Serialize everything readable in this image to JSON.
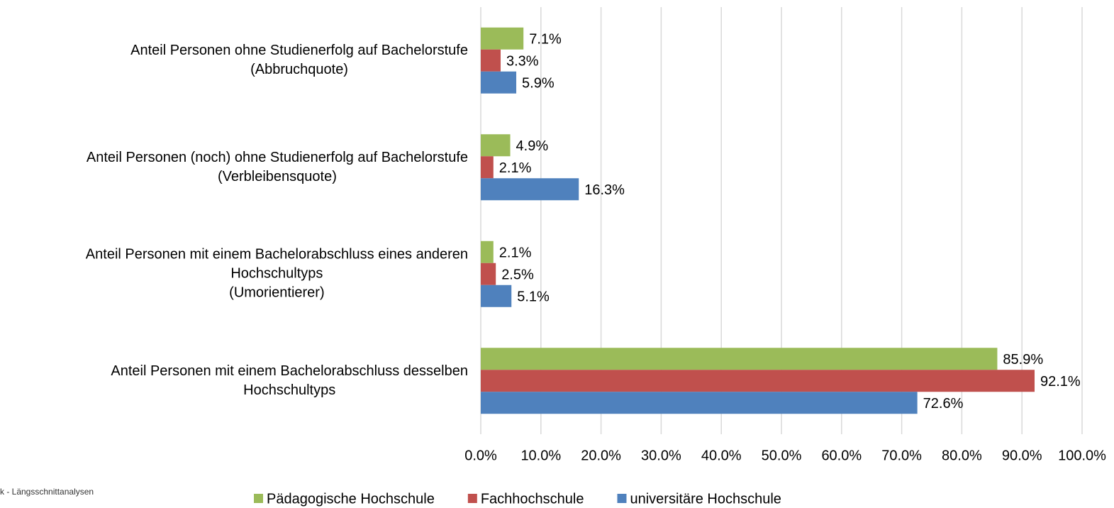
{
  "chart_data": {
    "type": "hbar",
    "categories": [
      [
        "Anteil Personen ohne Studienerfolg auf Bachelorstufe",
        "(Abbruchquote)"
      ],
      [
        "Anteil Personen (noch) ohne Studienerfolg auf Bachelorstufe",
        "(Verbleibensquote)"
      ],
      [
        "Anteil Personen mit einem Bachelorabschluss eines anderen",
        "Hochschultyps",
        "(Umorientierer)"
      ],
      [
        "Anteil Personen mit einem Bachelorabschluss desselben",
        "Hochschultyps"
      ]
    ],
    "series": [
      {
        "name": "Pädagogische Hochschule",
        "color": "#9bbb59",
        "values": [
          7.1,
          4.9,
          2.1,
          85.9
        ],
        "value_labels": [
          "7.1%",
          "4.9%",
          "2.1%",
          "85.9%"
        ]
      },
      {
        "name": "Fachhochschule",
        "color": "#c0504d",
        "values": [
          3.3,
          2.1,
          2.5,
          92.1
        ],
        "value_labels": [
          "3.3%",
          "2.1%",
          "2.5%",
          "92.1%"
        ]
      },
      {
        "name": "universitäre Hochschule",
        "color": "#4f81bd",
        "values": [
          5.9,
          16.3,
          5.1,
          72.6
        ],
        "value_labels": [
          "5.9%",
          "16.3%",
          "5.1%",
          "72.6%"
        ]
      }
    ],
    "xlim": [
      0,
      100
    ],
    "xticks": [
      {
        "value": 0,
        "label": "0.0%"
      },
      {
        "value": 10,
        "label": "10.0%"
      },
      {
        "value": 20,
        "label": "20.0%"
      },
      {
        "value": 30,
        "label": "30.0%"
      },
      {
        "value": 40,
        "label": "40.0%"
      },
      {
        "value": 50,
        "label": "50.0%"
      },
      {
        "value": 60,
        "label": "60.0%"
      },
      {
        "value": 70,
        "label": "70.0%"
      },
      {
        "value": 80,
        "label": "80.0%"
      },
      {
        "value": 90,
        "label": "90.0%"
      },
      {
        "value": 100,
        "label": "100.0%"
      }
    ],
    "grid": true,
    "legend": "bottom",
    "source": "k - Längsschnittanalysen"
  }
}
